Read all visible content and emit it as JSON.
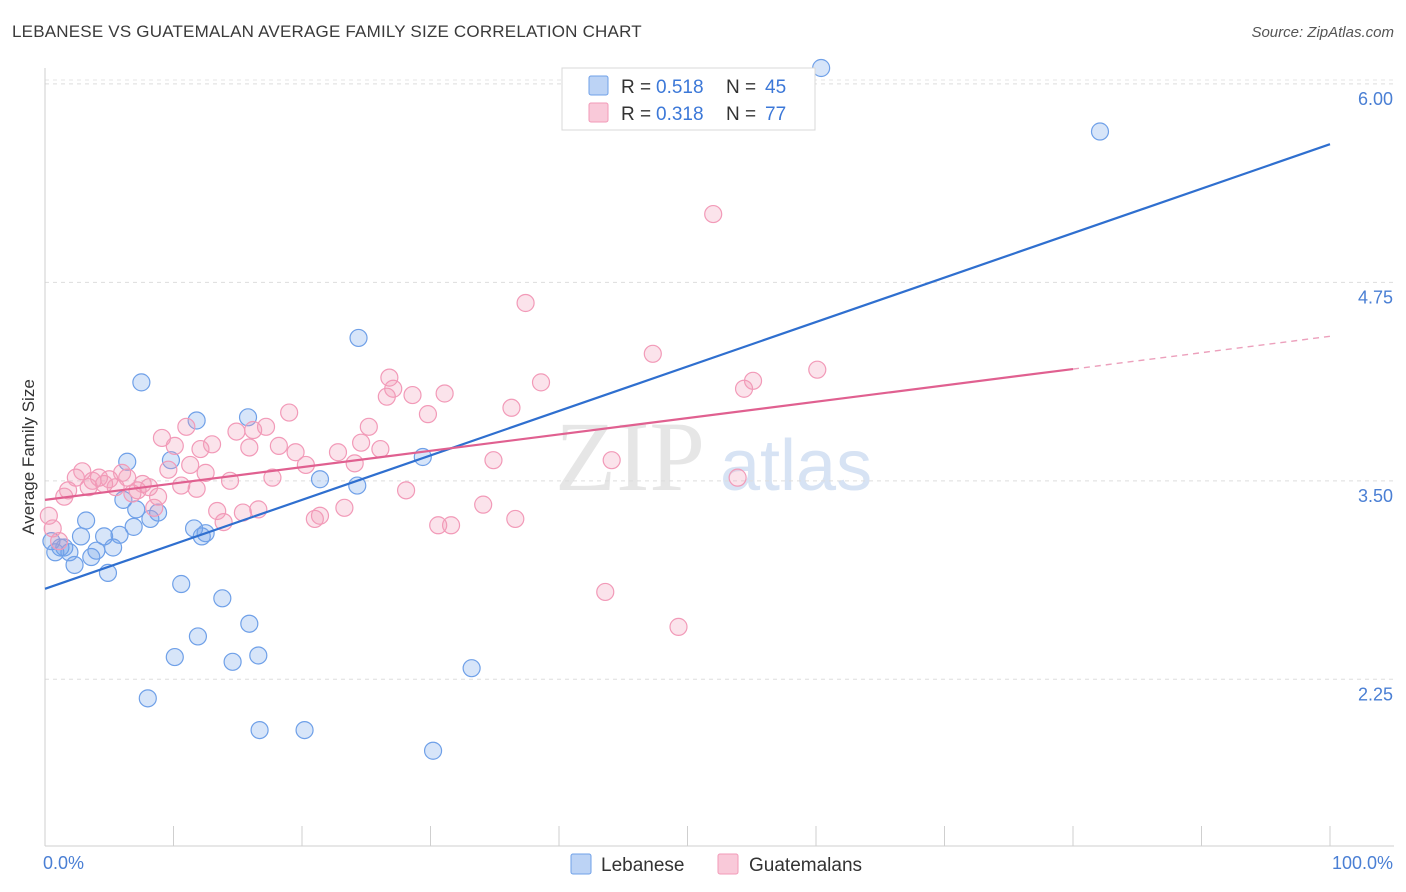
{
  "header": {
    "title": "LEBANESE VS GUATEMALAN AVERAGE FAMILY SIZE CORRELATION CHART",
    "source": "Source: ZipAtlas.com"
  },
  "watermark": {
    "zip": "ZIP",
    "atlas": "atlas"
  },
  "chart_data": {
    "type": "scatter",
    "title": "LEBANESE VS GUATEMALAN AVERAGE FAMILY SIZE CORRELATION CHART",
    "xlabel": "",
    "ylabel": "Average Family Size",
    "xlim": [
      0,
      100
    ],
    "ylim": [
      1.2,
      6.1
    ],
    "x_tick_labels": {
      "left": "0.0%",
      "right": "100.0%"
    },
    "y_ticks": [
      {
        "value": 2.25,
        "label": "2.25"
      },
      {
        "value": 3.5,
        "label": "3.50"
      },
      {
        "value": 4.75,
        "label": "4.75"
      },
      {
        "value": 6.0,
        "label": "6.00"
      }
    ],
    "grid": true,
    "legend_position": "top-center",
    "series": [
      {
        "name": "Lebanese",
        "color": "#6fa0e8",
        "line_color": "#2f6fcf",
        "r_label": "R = ",
        "r": "0.518",
        "n_label": "N = ",
        "n": "45",
        "trend": {
          "x0": 0,
          "y0": 2.82,
          "x1": 100,
          "y1": 5.62,
          "solid_to": 100
        },
        "points": [
          [
            0.5,
            3.12
          ],
          [
            0.8,
            3.05
          ],
          [
            1.2,
            3.08
          ],
          [
            1.5,
            3.08
          ],
          [
            1.9,
            3.05
          ],
          [
            2.3,
            2.97
          ],
          [
            2.8,
            3.15
          ],
          [
            3.2,
            3.25
          ],
          [
            3.6,
            3.02
          ],
          [
            4.0,
            3.06
          ],
          [
            4.6,
            3.15
          ],
          [
            4.9,
            2.92
          ],
          [
            5.3,
            3.08
          ],
          [
            5.8,
            3.16
          ],
          [
            6.1,
            3.38
          ],
          [
            6.4,
            3.62
          ],
          [
            6.9,
            3.21
          ],
          [
            7.1,
            3.32
          ],
          [
            7.5,
            4.12
          ],
          [
            8.0,
            2.13
          ],
          [
            8.2,
            3.26
          ],
          [
            8.8,
            3.3
          ],
          [
            9.8,
            3.63
          ],
          [
            10.1,
            2.39
          ],
          [
            10.6,
            2.85
          ],
          [
            11.6,
            3.2
          ],
          [
            11.8,
            3.88
          ],
          [
            11.9,
            2.52
          ],
          [
            12.2,
            3.15
          ],
          [
            12.5,
            3.17
          ],
          [
            13.8,
            2.76
          ],
          [
            14.6,
            2.36
          ],
          [
            15.8,
            3.9
          ],
          [
            15.9,
            2.6
          ],
          [
            16.6,
            2.4
          ],
          [
            16.7,
            1.93
          ],
          [
            20.2,
            1.93
          ],
          [
            21.4,
            3.51
          ],
          [
            24.3,
            3.47
          ],
          [
            24.4,
            4.4
          ],
          [
            29.4,
            3.65
          ],
          [
            30.2,
            1.8
          ],
          [
            33.2,
            2.32
          ],
          [
            60.4,
            6.1
          ],
          [
            82.1,
            5.7
          ]
        ]
      },
      {
        "name": "Guatemalans",
        "color": "#f29ab8",
        "line_color": "#e06090",
        "r_label": "R = ",
        "r": "0.318",
        "n_label": "N = ",
        "n": "77",
        "trend": {
          "x0": 0,
          "y0": 3.38,
          "x1": 100,
          "y1": 4.41,
          "solid_to": 80
        },
        "points": [
          [
            0.3,
            3.28
          ],
          [
            0.6,
            3.2
          ],
          [
            1.1,
            3.12
          ],
          [
            1.5,
            3.4
          ],
          [
            1.8,
            3.44
          ],
          [
            2.4,
            3.52
          ],
          [
            2.9,
            3.56
          ],
          [
            3.4,
            3.46
          ],
          [
            3.7,
            3.5
          ],
          [
            4.2,
            3.52
          ],
          [
            4.6,
            3.48
          ],
          [
            5.0,
            3.51
          ],
          [
            5.5,
            3.46
          ],
          [
            6.0,
            3.55
          ],
          [
            6.4,
            3.52
          ],
          [
            6.8,
            3.42
          ],
          [
            7.2,
            3.44
          ],
          [
            7.6,
            3.48
          ],
          [
            8.1,
            3.46
          ],
          [
            8.5,
            3.33
          ],
          [
            8.8,
            3.4
          ],
          [
            9.1,
            3.77
          ],
          [
            9.6,
            3.57
          ],
          [
            10.1,
            3.72
          ],
          [
            10.6,
            3.47
          ],
          [
            11.0,
            3.84
          ],
          [
            11.3,
            3.6
          ],
          [
            11.8,
            3.45
          ],
          [
            12.1,
            3.7
          ],
          [
            12.5,
            3.55
          ],
          [
            13.0,
            3.73
          ],
          [
            13.4,
            3.31
          ],
          [
            13.9,
            3.24
          ],
          [
            14.4,
            3.5
          ],
          [
            14.9,
            3.81
          ],
          [
            15.4,
            3.3
          ],
          [
            15.9,
            3.71
          ],
          [
            16.2,
            3.82
          ],
          [
            16.6,
            3.32
          ],
          [
            17.2,
            3.84
          ],
          [
            17.7,
            3.52
          ],
          [
            18.2,
            3.72
          ],
          [
            19.0,
            3.93
          ],
          [
            19.5,
            3.68
          ],
          [
            20.3,
            3.6
          ],
          [
            21.0,
            3.26
          ],
          [
            21.4,
            3.28
          ],
          [
            22.8,
            3.68
          ],
          [
            23.3,
            3.33
          ],
          [
            24.1,
            3.61
          ],
          [
            24.6,
            3.74
          ],
          [
            25.2,
            3.84
          ],
          [
            26.1,
            3.7
          ],
          [
            26.6,
            4.03
          ],
          [
            26.8,
            4.15
          ],
          [
            27.1,
            4.08
          ],
          [
            28.1,
            3.44
          ],
          [
            28.6,
            4.04
          ],
          [
            29.8,
            3.92
          ],
          [
            30.6,
            3.22
          ],
          [
            31.1,
            4.05
          ],
          [
            31.6,
            3.22
          ],
          [
            34.1,
            3.35
          ],
          [
            34.9,
            3.63
          ],
          [
            36.3,
            3.96
          ],
          [
            36.6,
            3.26
          ],
          [
            37.4,
            4.62
          ],
          [
            38.6,
            4.12
          ],
          [
            43.6,
            2.8
          ],
          [
            44.1,
            3.63
          ],
          [
            47.3,
            4.3
          ],
          [
            49.3,
            2.58
          ],
          [
            52.0,
            5.18
          ],
          [
            53.9,
            3.52
          ],
          [
            54.4,
            4.08
          ],
          [
            55.1,
            4.13
          ],
          [
            60.1,
            4.2
          ]
        ]
      }
    ]
  },
  "bottom_legend": {
    "lebanese": "Lebanese",
    "guatemalans": "Guatemalans"
  }
}
